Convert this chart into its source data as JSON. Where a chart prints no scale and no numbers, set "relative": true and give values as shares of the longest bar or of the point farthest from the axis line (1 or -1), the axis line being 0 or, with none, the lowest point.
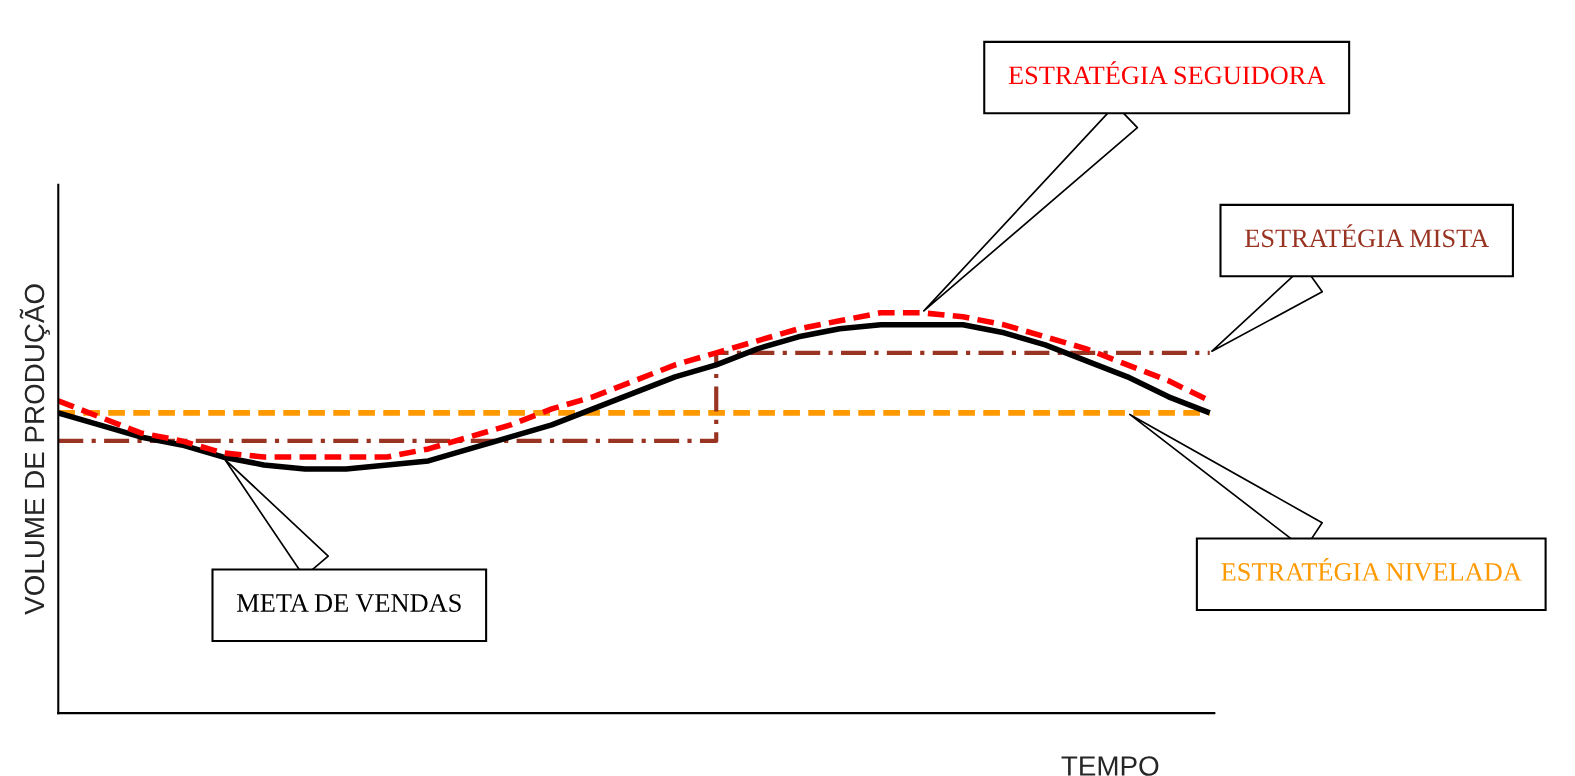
{
  "chart_data": {
    "type": "line",
    "relative": true,
    "xlabel": "TEMPO",
    "ylabel": "VOLUME DE PRODUÇÃO",
    "legend": false,
    "categories": [
      null,
      null,
      null,
      null,
      null,
      null,
      null,
      null,
      null,
      null,
      null,
      null,
      null,
      null,
      null,
      null,
      null,
      null,
      null,
      null,
      null,
      null,
      null,
      null,
      null,
      null,
      null,
      null,
      null
    ],
    "series": [
      {
        "name": "ESTRATÉGIA NIVELADA",
        "color": "#ff9900",
        "line_style": "dashed",
        "values": [
          0.75,
          0.75,
          0.75,
          0.75,
          0.75,
          0.75,
          0.75,
          0.75,
          0.75,
          0.75,
          0.75,
          0.75,
          0.75,
          0.75,
          0.75,
          0.75,
          0.75,
          0.75,
          0.75,
          0.75,
          0.75,
          0.75,
          0.75,
          0.75,
          0.75,
          0.75,
          0.75,
          0.75,
          0.75
        ]
      },
      {
        "name": "ESTRATÉGIA MISTA",
        "type": "step",
        "color": "#993322",
        "line_style": "dashdot",
        "values": [
          0.68,
          0.68,
          0.68,
          0.68,
          0.68,
          0.68,
          0.68,
          0.68,
          0.68,
          0.68,
          0.68,
          0.68,
          0.68,
          0.68,
          0.68,
          0.68,
          0.9,
          0.9,
          0.9,
          0.9,
          0.9,
          0.9,
          0.9,
          0.9,
          0.9,
          0.9,
          0.9,
          0.9,
          0.9
        ]
      },
      {
        "name": "META DE VENDAS",
        "color": "#000000",
        "line_style": "solid",
        "values": [
          0.75,
          0.72,
          0.69,
          0.67,
          0.64,
          0.62,
          0.61,
          0.61,
          0.62,
          0.63,
          0.66,
          0.69,
          0.72,
          0.76,
          0.8,
          0.84,
          0.87,
          0.91,
          0.94,
          0.96,
          0.97,
          0.97,
          0.97,
          0.95,
          0.92,
          0.88,
          0.84,
          0.79,
          0.75
        ]
      },
      {
        "name": "ESTRATÉGIA SEGUIDORA",
        "color": "#ff0000",
        "line_style": "dashed",
        "values": [
          0.78,
          0.74,
          0.7,
          0.68,
          0.65,
          0.64,
          0.64,
          0.64,
          0.64,
          0.66,
          0.69,
          0.72,
          0.76,
          0.79,
          0.83,
          0.87,
          0.9,
          0.93,
          0.96,
          0.98,
          1.0,
          1.0,
          0.99,
          0.97,
          0.94,
          0.91,
          0.87,
          0.83,
          0.78
        ]
      }
    ]
  }
}
